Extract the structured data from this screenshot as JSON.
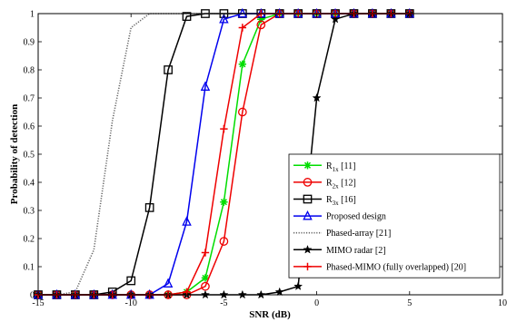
{
  "chart_data": {
    "type": "line",
    "xlabel": "SNR (dB)",
    "ylabel": "Probability of detection",
    "xlim": [
      -15,
      10
    ],
    "ylim": [
      0,
      1
    ],
    "xticks": [
      -15,
      -10,
      -5,
      0,
      5,
      10
    ],
    "yticks": [
      0,
      0.1,
      0.2,
      0.3,
      0.4,
      0.5,
      0.6,
      0.7,
      0.8,
      0.9,
      1
    ],
    "grid": false,
    "legend_position": "bottom-right",
    "x": [
      -15,
      -14,
      -13,
      -12,
      -11,
      -10,
      -9,
      -8,
      -7,
      -6,
      -5,
      -4,
      -3,
      -2,
      -1,
      0,
      1,
      2,
      3,
      4,
      5
    ],
    "series": [
      {
        "label_main": "R",
        "label_sub": "1x",
        "label_rest": " [11]",
        "color": "#00dd00",
        "marker": "asterisk",
        "dash": "solid",
        "values": [
          0,
          0,
          0,
          0,
          0,
          0,
          0,
          0,
          0.01,
          0.06,
          0.33,
          0.82,
          0.98,
          1,
          1,
          1,
          1,
          1,
          1,
          1,
          1
        ]
      },
      {
        "label_main": "R",
        "label_sub": "2x",
        "label_rest": " [12]",
        "color": "#ee0000",
        "marker": "circle",
        "dash": "solid",
        "values": [
          0,
          0,
          0,
          0,
          0,
          0,
          0,
          0,
          0,
          0.03,
          0.19,
          0.65,
          0.96,
          1,
          1,
          1,
          1,
          1,
          1,
          1,
          1
        ]
      },
      {
        "label_main": "R",
        "label_sub": "3x",
        "label_rest": " [16]",
        "color": "#000000",
        "marker": "square",
        "dash": "solid",
        "values": [
          0,
          0,
          0,
          0,
          0.01,
          0.05,
          0.31,
          0.8,
          0.99,
          1,
          1,
          1,
          1,
          1,
          1,
          1,
          1,
          1,
          1,
          1,
          1
        ]
      },
      {
        "label_main": "Proposed design",
        "label_sub": "",
        "label_rest": "",
        "color": "#0000ee",
        "marker": "triangle",
        "dash": "solid",
        "values": [
          0,
          0,
          0,
          0,
          0,
          0,
          0,
          0.04,
          0.26,
          0.74,
          0.98,
          1,
          1,
          1,
          1,
          1,
          1,
          1,
          1,
          1,
          1
        ]
      },
      {
        "label_main": "Phased-array [21]",
        "label_sub": "",
        "label_rest": "",
        "color": "#666666",
        "marker": "none",
        "dash": "dotted",
        "values": [
          0,
          0,
          0.01,
          0.16,
          0.62,
          0.95,
          1,
          1,
          1,
          1,
          1,
          1,
          1,
          1,
          1,
          1,
          1,
          1,
          1,
          1,
          1
        ]
      },
      {
        "label_main": "MIMO radar [2]",
        "label_sub": "",
        "label_rest": "",
        "color": "#000000",
        "marker": "star",
        "dash": "solid",
        "values": [
          0,
          0,
          0,
          0,
          0,
          0,
          0,
          0,
          0,
          0,
          0,
          0,
          0,
          0.01,
          0.03,
          0.7,
          0.98,
          1,
          1,
          1,
          1
        ]
      },
      {
        "label_main": "Phased-MIMO (fully overlapped) [20]",
        "label_sub": "",
        "label_rest": "",
        "color": "#ee0000",
        "marker": "plus",
        "dash": "solid",
        "values": [
          0,
          0,
          0,
          0,
          0,
          0,
          0,
          0,
          0.01,
          0.15,
          0.59,
          0.95,
          1,
          1,
          1,
          1,
          1,
          1,
          1,
          1,
          1
        ]
      }
    ]
  }
}
